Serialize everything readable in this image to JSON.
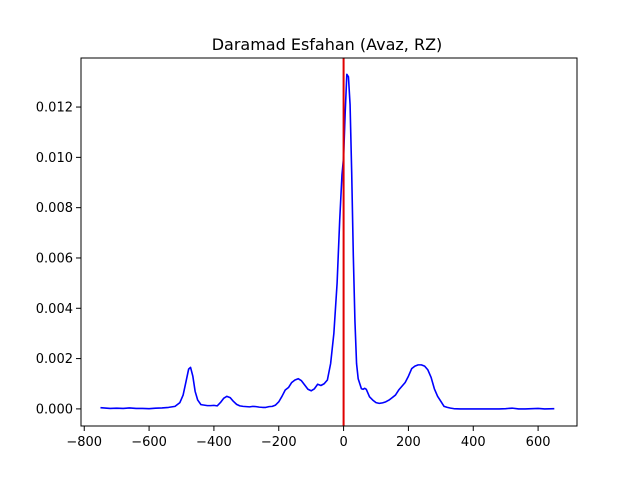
{
  "chart_data": {
    "type": "line",
    "title": "Daramad Esfahan (Avaz, RZ)",
    "xlabel": "",
    "ylabel": "",
    "xlim": [
      -810,
      720
    ],
    "ylim": [
      -0.00068,
      0.01395
    ],
    "grid": false,
    "x_ticks": [
      -800,
      -600,
      -400,
      -200,
      0,
      200,
      400,
      600
    ],
    "x_tick_labels": [
      "−800",
      "−600",
      "−400",
      "−200",
      "0",
      "200",
      "400",
      "600"
    ],
    "y_ticks": [
      0.0,
      0.002,
      0.004,
      0.006,
      0.008,
      0.01,
      0.012
    ],
    "y_tick_labels": [
      "0.000",
      "0.002",
      "0.004",
      "0.006",
      "0.008",
      "0.010",
      "0.012"
    ],
    "series": [
      {
        "color": "#0000ff",
        "x": [
          -750,
          -720,
          -700,
          -680,
          -660,
          -640,
          -620,
          -600,
          -580,
          -560,
          -540,
          -520,
          -505,
          -495,
          -485,
          -478,
          -472,
          -465,
          -458,
          -450,
          -440,
          -430,
          -420,
          -410,
          -400,
          -390,
          -380,
          -370,
          -360,
          -350,
          -340,
          -330,
          -320,
          -310,
          -300,
          -290,
          -280,
          -270,
          -260,
          -250,
          -240,
          -230,
          -220,
          -210,
          -200,
          -190,
          -180,
          -170,
          -160,
          -150,
          -140,
          -130,
          -120,
          -110,
          -100,
          -90,
          -80,
          -70,
          -60,
          -50,
          -40,
          -30,
          -20,
          -12,
          -5,
          0,
          5,
          10,
          15,
          20,
          25,
          30,
          35,
          40,
          45,
          50,
          55,
          60,
          65,
          70,
          80,
          90,
          100,
          110,
          120,
          130,
          140,
          150,
          160,
          170,
          180,
          190,
          200,
          210,
          220,
          230,
          240,
          250,
          260,
          270,
          280,
          290,
          300,
          310,
          320,
          330,
          340,
          360,
          380,
          400,
          420,
          440,
          460,
          480,
          500,
          520,
          540,
          560,
          580,
          600,
          620,
          650
        ],
        "y": [
          5e-05,
          2e-05,
          3e-05,
          2e-05,
          4e-05,
          2e-05,
          2e-05,
          1e-05,
          3e-05,
          4e-05,
          6e-05,
          0.0001,
          0.00025,
          0.00055,
          0.00115,
          0.00158,
          0.00165,
          0.0013,
          0.0007,
          0.00035,
          0.00017,
          0.00015,
          0.00013,
          0.00013,
          0.00014,
          0.00012,
          0.00025,
          0.00042,
          0.0005,
          0.00045,
          0.0003,
          0.00018,
          0.00012,
          0.0001,
          9e-05,
          8e-05,
          0.0001,
          9e-05,
          7e-05,
          6e-05,
          6e-05,
          9e-05,
          0.0001,
          0.00015,
          0.00028,
          0.0005,
          0.00075,
          0.00085,
          0.00105,
          0.00115,
          0.0012,
          0.00112,
          0.00095,
          0.00078,
          0.00072,
          0.0008,
          0.00098,
          0.00093,
          0.001,
          0.00115,
          0.0018,
          0.003,
          0.005,
          0.0075,
          0.0093,
          0.01,
          0.0118,
          0.0133,
          0.0132,
          0.0121,
          0.0094,
          0.0061,
          0.0035,
          0.0018,
          0.0012,
          0.001,
          0.0008,
          0.00078,
          0.00082,
          0.00078,
          0.00048,
          0.00035,
          0.00025,
          0.00022,
          0.00024,
          0.00028,
          0.00035,
          0.00045,
          0.00055,
          0.00075,
          0.0009,
          0.00105,
          0.0013,
          0.0016,
          0.0017,
          0.00175,
          0.00175,
          0.0017,
          0.00155,
          0.00125,
          0.0008,
          0.0005,
          0.0003,
          0.0001,
          6e-05,
          3e-05,
          1e-05,
          0.0,
          0.0,
          0.0,
          0.0,
          0.0,
          0.0,
          0.0,
          1e-05,
          3e-05,
          0.0,
          0.0,
          1e-05,
          2e-05,
          0.0,
          1e-05
        ]
      }
    ],
    "vertical_lines": [
      {
        "x": 0,
        "color": "#e00000"
      }
    ]
  }
}
